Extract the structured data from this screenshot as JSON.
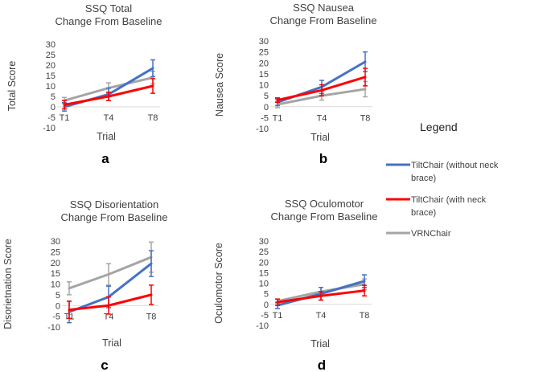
{
  "legend": {
    "title": "Legend",
    "entries": [
      {
        "lines": [
          "TiltChair (without neck",
          "brace)"
        ],
        "color": "#4472C4"
      },
      {
        "lines": [
          "TiltChair (with neck",
          "brace)"
        ],
        "color": "#FF0000"
      },
      {
        "lines": [
          "VRNChair"
        ],
        "color": "#A5A5A5"
      }
    ]
  },
  "chart_data": [
    {
      "type": "line",
      "letter": "a",
      "title": [
        "SSQ Total",
        "Change From Baseline"
      ],
      "xlabel": "Trial",
      "ylabel": "Total Score",
      "categories": [
        "T1",
        "T4",
        "T8"
      ],
      "yticks": [
        30,
        25,
        20,
        15,
        10,
        5,
        0,
        -5,
        -10
      ],
      "ylim": [
        -10,
        30
      ],
      "series": [
        {
          "name": "TiltChair (without neck brace)",
          "color": "#4472C4",
          "values": [
            0,
            6,
            18.5
          ],
          "err": [
            2,
            3,
            4
          ]
        },
        {
          "name": "TiltChair (with neck brace)",
          "color": "#FF0000",
          "values": [
            1,
            5,
            10
          ],
          "err": [
            2,
            2,
            3.5
          ]
        },
        {
          "name": "VRNChair",
          "color": "#A5A5A5",
          "values": [
            3,
            9,
            14
          ],
          "err": [
            1.5,
            2.5,
            3
          ]
        }
      ]
    },
    {
      "type": "line",
      "letter": "b",
      "title": [
        "SSQ Nausea",
        "Change From Baseline"
      ],
      "xlabel": "Trial",
      "ylabel": "Nausea Score",
      "categories": [
        "T1",
        "T4",
        "T8"
      ],
      "yticks": [
        30,
        25,
        20,
        15,
        10,
        5,
        0,
        -5,
        -10
      ],
      "ylim": [
        -10,
        30
      ],
      "series": [
        {
          "name": "TiltChair (without neck brace)",
          "color": "#4472C4",
          "values": [
            2,
            9,
            20.5
          ],
          "err": [
            1.5,
            3,
            4.5
          ]
        },
        {
          "name": "TiltChair (with neck brace)",
          "color": "#FF0000",
          "values": [
            3,
            7.5,
            13.5
          ],
          "err": [
            1,
            2.5,
            4
          ]
        },
        {
          "name": "VRNChair",
          "color": "#A5A5A5",
          "values": [
            1,
            5,
            8
          ],
          "err": [
            1.5,
            2,
            3.5
          ]
        }
      ]
    },
    {
      "type": "line",
      "letter": "c",
      "title": [
        "SSQ Disorientation",
        "Change From Baseline"
      ],
      "xlabel": "Trial",
      "ylabel": "Disorietnation Score",
      "categories": [
        "T1",
        "T4",
        "T8"
      ],
      "yticks": [
        30,
        25,
        20,
        15,
        10,
        5,
        0,
        -5,
        -10
      ],
      "ylim": [
        -10,
        30
      ],
      "series": [
        {
          "name": "TiltChair (without neck brace)",
          "color": "#4472C4",
          "values": [
            -3,
            4,
            19.5
          ],
          "err": [
            5,
            5,
            6
          ]
        },
        {
          "name": "TiltChair (with neck brace)",
          "color": "#FF0000",
          "values": [
            -2,
            0,
            5
          ],
          "err": [
            4,
            4,
            4.5
          ]
        },
        {
          "name": "VRNChair",
          "color": "#A5A5A5",
          "values": [
            8,
            14.5,
            22.5
          ],
          "err": [
            3,
            5,
            7
          ]
        }
      ]
    },
    {
      "type": "line",
      "letter": "d",
      "title": [
        "SSQ Oculomotor",
        "Change From Baseline"
      ],
      "xlabel": "Trial",
      "ylabel": "Oculomotor Score",
      "categories": [
        "T1",
        "T4",
        "T8"
      ],
      "yticks": [
        30,
        25,
        20,
        15,
        10,
        5,
        0,
        -5,
        -10
      ],
      "ylim": [
        -10,
        30
      ],
      "series": [
        {
          "name": "TiltChair (without neck brace)",
          "color": "#4472C4",
          "values": [
            -0.5,
            5,
            11
          ],
          "err": [
            1.5,
            3,
            3
          ]
        },
        {
          "name": "TiltChair (with neck brace)",
          "color": "#FF0000",
          "values": [
            1,
            4,
            6.5
          ],
          "err": [
            1.5,
            2,
            2.5
          ]
        },
        {
          "name": "VRNChair",
          "color": "#A5A5A5",
          "values": [
            1.5,
            6,
            9.5
          ],
          "err": [
            1,
            2,
            2.5
          ]
        }
      ]
    }
  ]
}
